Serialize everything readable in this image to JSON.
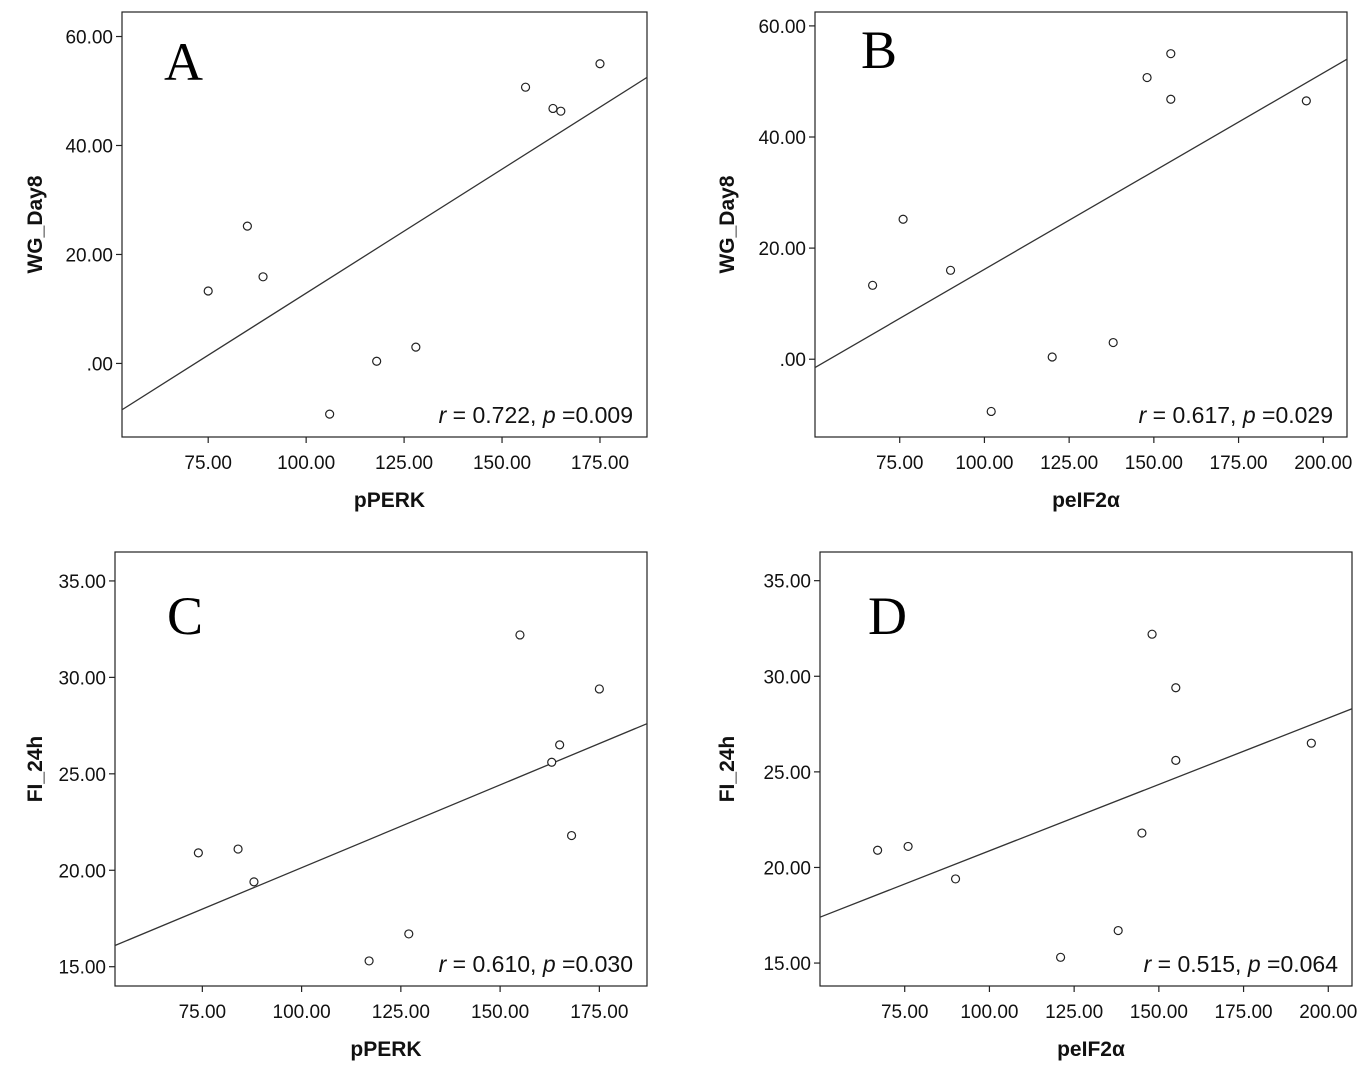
{
  "chart_data": [
    {
      "type": "scatter",
      "panel": "A",
      "xlabel": "pPERK",
      "ylabel": "WG_Day8",
      "xlim": [
        53,
        187
      ],
      "ylim": [
        -13.5,
        64.5
      ],
      "xticks": [
        75,
        100,
        125,
        150,
        175
      ],
      "xtick_labels": [
        "75.00",
        "100.00",
        "125.00",
        "150.00",
        "175.00"
      ],
      "yticks": [
        0,
        20,
        40,
        60
      ],
      "ytick_labels": [
        ".00",
        "20.00",
        "40.00",
        "60.00"
      ],
      "points": [
        [
          75,
          13.3
        ],
        [
          85,
          25.2
        ],
        [
          89,
          15.9
        ],
        [
          106,
          -9.3
        ],
        [
          118,
          0.4
        ],
        [
          128,
          3.0
        ],
        [
          156,
          50.7
        ],
        [
          163,
          46.8
        ],
        [
          165,
          46.3
        ],
        [
          175,
          55.0
        ]
      ],
      "fit_line": [
        [
          53,
          -8.5
        ],
        [
          187,
          52.5
        ]
      ],
      "stat_r": "0.722",
      "stat_p": "0.009"
    },
    {
      "type": "scatter",
      "panel": "B",
      "xlabel": "peIF2α",
      "ylabel": "WG_Day8",
      "xlim": [
        50,
        207
      ],
      "ylim": [
        -14,
        62.5
      ],
      "xticks": [
        75,
        100,
        125,
        150,
        175,
        200
      ],
      "xtick_labels": [
        "75.00",
        "100.00",
        "125.00",
        "150.00",
        "175.00",
        "200.00"
      ],
      "yticks": [
        0,
        20,
        40,
        60
      ],
      "ytick_labels": [
        ".00",
        "20.00",
        "40.00",
        "60.00"
      ],
      "points": [
        [
          67,
          13.3
        ],
        [
          76,
          25.2
        ],
        [
          90,
          16.0
        ],
        [
          102,
          -9.4
        ],
        [
          120,
          0.4
        ],
        [
          138,
          3.0
        ],
        [
          148,
          50.7
        ],
        [
          155,
          55.0
        ],
        [
          155,
          46.8
        ],
        [
          195,
          46.5
        ]
      ],
      "fit_line": [
        [
          50,
          -1.5
        ],
        [
          207,
          54.0
        ]
      ],
      "stat_r": "0.617",
      "stat_p": "0.029"
    },
    {
      "type": "scatter",
      "panel": "C",
      "xlabel": "pPERK",
      "ylabel": "FI_24h",
      "xlim": [
        53,
        187
      ],
      "ylim": [
        14,
        36.5
      ],
      "xticks": [
        75,
        100,
        125,
        150,
        175
      ],
      "xtick_labels": [
        "75.00",
        "100.00",
        "125.00",
        "150.00",
        "175.00"
      ],
      "yticks": [
        15,
        20,
        25,
        30,
        35
      ],
      "ytick_labels": [
        "15.00",
        "20.00",
        "25.00",
        "30.00",
        "35.00"
      ],
      "points": [
        [
          74,
          20.9
        ],
        [
          84,
          21.1
        ],
        [
          88,
          19.4
        ],
        [
          117,
          15.3
        ],
        [
          127,
          16.7
        ],
        [
          155,
          32.2
        ],
        [
          163,
          25.6
        ],
        [
          165,
          26.5
        ],
        [
          168,
          21.8
        ],
        [
          175,
          29.4
        ]
      ],
      "fit_line": [
        [
          53,
          16.1
        ],
        [
          187,
          27.6
        ]
      ],
      "stat_r": "0.610",
      "stat_p": "0.030"
    },
    {
      "type": "scatter",
      "panel": "D",
      "xlabel": "peIF2α",
      "ylabel": "FI_24h",
      "xlim": [
        50,
        207
      ],
      "ylim": [
        13.8,
        36.5
      ],
      "xticks": [
        75,
        100,
        125,
        150,
        175,
        200
      ],
      "xtick_labels": [
        "75.00",
        "100.00",
        "125.00",
        "150.00",
        "175.00",
        "200.00"
      ],
      "yticks": [
        15,
        20,
        25,
        30,
        35
      ],
      "ytick_labels": [
        "15.00",
        "20.00",
        "25.00",
        "30.00",
        "35.00"
      ],
      "points": [
        [
          67,
          20.9
        ],
        [
          76,
          21.1
        ],
        [
          90,
          19.4
        ],
        [
          121,
          15.3
        ],
        [
          138,
          16.7
        ],
        [
          145,
          21.8
        ],
        [
          148,
          32.2
        ],
        [
          155,
          29.4
        ],
        [
          155,
          25.6
        ],
        [
          195,
          26.5
        ]
      ],
      "fit_line": [
        [
          50,
          17.4
        ],
        [
          207,
          28.3
        ]
      ],
      "stat_r": "0.515",
      "stat_p": "0.064"
    }
  ]
}
